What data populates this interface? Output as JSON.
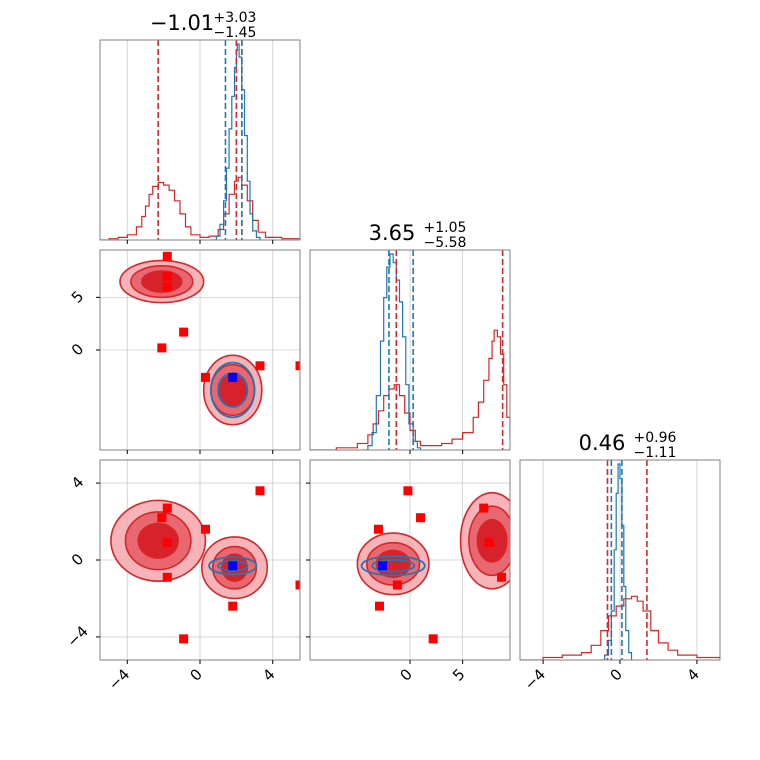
{
  "chart_data": {
    "type": "corner",
    "grid": true,
    "colors": {
      "red": "#d62728",
      "blue": "#1f77b4",
      "marker": "#ff0000",
      "truth": "#0000ff",
      "grid": "#cccccc"
    },
    "axes": {
      "x": {
        "limits": [
          -5.5,
          5.5
        ],
        "ticks": [
          -4,
          0,
          4
        ],
        "tick_labels": [
          "−4",
          "0",
          "4"
        ]
      },
      "y": {
        "limits": [
          -9.5,
          9.5
        ],
        "ticks": [
          0,
          5
        ],
        "tick_labels": [
          "0",
          "5"
        ]
      },
      "z": {
        "limits": [
          -5.2,
          5.2
        ],
        "ticks": [
          -4,
          0,
          4
        ],
        "tick_labels": [
          "−4",
          "0",
          "4"
        ]
      }
    },
    "titles": [
      {
        "param": "x",
        "main": "−1.01",
        "plus": "+3.03",
        "minus": "−1.45"
      },
      {
        "param": "y",
        "main": "3.65",
        "plus": "+1.05",
        "minus": "−5.58"
      },
      {
        "param": "z",
        "main": "0.46",
        "plus": "+0.96",
        "minus": "−1.11"
      }
    ],
    "quantile_lines": {
      "x": {
        "red": [
          -2.3,
          2.0,
          2.3
        ],
        "blue": [
          1.4,
          2.3
        ]
      },
      "y": {
        "red": [
          -1.3,
          8.8
        ],
        "blue": [
          -2.0,
          0.3
        ]
      },
      "z": {
        "red": [
          -0.65,
          1.4
        ],
        "blue": [
          -0.45,
          0.1
        ]
      }
    },
    "marginals": {
      "x": {
        "red": [
          [
            -5.5,
            0
          ],
          [
            -5,
            0.01
          ],
          [
            -4.5,
            0.02
          ],
          [
            -4,
            0.04
          ],
          [
            -3.5,
            0.1
          ],
          [
            -3.2,
            0.18
          ],
          [
            -3,
            0.26
          ],
          [
            -2.8,
            0.35
          ],
          [
            -2.6,
            0.41
          ],
          [
            -2.3,
            0.44
          ],
          [
            -2,
            0.42
          ],
          [
            -1.7,
            0.38
          ],
          [
            -1.4,
            0.3
          ],
          [
            -1.1,
            0.2
          ],
          [
            -0.8,
            0.1
          ],
          [
            -0.5,
            0.04
          ],
          [
            0,
            0.02
          ],
          [
            0.5,
            0.03
          ],
          [
            1,
            0.08
          ],
          [
            1.3,
            0.2
          ],
          [
            1.6,
            0.35
          ],
          [
            1.9,
            0.45
          ],
          [
            2.1,
            0.48
          ],
          [
            2.3,
            0.42
          ],
          [
            2.6,
            0.3
          ],
          [
            2.9,
            0.15
          ],
          [
            3.2,
            0.06
          ],
          [
            3.6,
            0.02
          ],
          [
            4.5,
            0.01
          ],
          [
            5.5,
            0
          ]
        ],
        "blue": [
          [
            0.6,
            0
          ],
          [
            0.9,
            0.03
          ],
          [
            1.1,
            0.12
          ],
          [
            1.3,
            0.3
          ],
          [
            1.45,
            0.55
          ],
          [
            1.6,
            0.85
          ],
          [
            1.75,
            1.1
          ],
          [
            1.9,
            1.32
          ],
          [
            2.0,
            1.45
          ],
          [
            2.05,
            1.5
          ],
          [
            2.15,
            1.4
          ],
          [
            2.3,
            1.15
          ],
          [
            2.45,
            0.8
          ],
          [
            2.6,
            0.45
          ],
          [
            2.75,
            0.2
          ],
          [
            2.9,
            0.07
          ],
          [
            3.1,
            0.02
          ],
          [
            3.3,
            0
          ]
        ]
      },
      "y": {
        "red": [
          [
            -9.5,
            0
          ],
          [
            -7,
            0.01
          ],
          [
            -5,
            0.03
          ],
          [
            -4,
            0.07
          ],
          [
            -3.5,
            0.12
          ],
          [
            -3,
            0.18
          ],
          [
            -2.5,
            0.25
          ],
          [
            -2,
            0.28
          ],
          [
            -1.5,
            0.3
          ],
          [
            -1,
            0.25
          ],
          [
            -0.5,
            0.17
          ],
          [
            0,
            0.09
          ],
          [
            0.5,
            0.04
          ],
          [
            1,
            0.02
          ],
          [
            2,
            0.02
          ],
          [
            3,
            0.03
          ],
          [
            4,
            0.05
          ],
          [
            5,
            0.08
          ],
          [
            6,
            0.15
          ],
          [
            6.5,
            0.22
          ],
          [
            7,
            0.32
          ],
          [
            7.5,
            0.42
          ],
          [
            7.8,
            0.5
          ],
          [
            8,
            0.55
          ],
          [
            8.3,
            0.52
          ],
          [
            8.6,
            0.44
          ],
          [
            8.9,
            0.3
          ],
          [
            9.2,
            0.15
          ],
          [
            9.5,
            0.05
          ]
        ],
        "blue": [
          [
            -4.5,
            0
          ],
          [
            -4,
            0.02
          ],
          [
            -3.6,
            0.08
          ],
          [
            -3.2,
            0.25
          ],
          [
            -2.8,
            0.5
          ],
          [
            -2.5,
            0.7
          ],
          [
            -2.2,
            0.84
          ],
          [
            -1.9,
            0.9
          ],
          [
            -1.6,
            0.86
          ],
          [
            -1.3,
            0.78
          ],
          [
            -1,
            0.68
          ],
          [
            -0.7,
            0.52
          ],
          [
            -0.4,
            0.3
          ],
          [
            -0.1,
            0.12
          ],
          [
            0.3,
            0.04
          ],
          [
            0.7,
            0.01
          ],
          [
            1,
            0
          ]
        ]
      },
      "z": {
        "red": [
          [
            -5.2,
            0
          ],
          [
            -4,
            0.01
          ],
          [
            -3,
            0.02
          ],
          [
            -2,
            0.03
          ],
          [
            -1.5,
            0.06
          ],
          [
            -1,
            0.12
          ],
          [
            -0.6,
            0.18
          ],
          [
            -0.2,
            0.22
          ],
          [
            0.2,
            0.25
          ],
          [
            0.6,
            0.26
          ],
          [
            0.9,
            0.24
          ],
          [
            1.2,
            0.2
          ],
          [
            1.6,
            0.12
          ],
          [
            2,
            0.07
          ],
          [
            2.5,
            0.04
          ],
          [
            3,
            0.02
          ],
          [
            4,
            0.01
          ],
          [
            5.2,
            0
          ]
        ],
        "blue": [
          [
            -1,
            0
          ],
          [
            -0.8,
            0.02
          ],
          [
            -0.6,
            0.08
          ],
          [
            -0.45,
            0.2
          ],
          [
            -0.3,
            0.45
          ],
          [
            -0.2,
            0.68
          ],
          [
            -0.1,
            0.8
          ],
          [
            0.0,
            0.74
          ],
          [
            0.1,
            0.55
          ],
          [
            0.2,
            0.3
          ],
          [
            0.3,
            0.12
          ],
          [
            0.45,
            0.03
          ],
          [
            0.6,
            0
          ]
        ]
      }
    },
    "blobs": {
      "xy": [
        {
          "cx": -2.1,
          "cy": 6.5,
          "rx": [
            2.3,
            1.7,
            1.1
          ],
          "ry": [
            2.0,
            1.5,
            1.0
          ],
          "color": "red"
        },
        {
          "cx": 1.8,
          "cy": -3.8,
          "rx": [
            1.6,
            1.2,
            0.8
          ],
          "ry": [
            3.3,
            2.4,
            1.6
          ],
          "color": "red"
        },
        {
          "cx": 1.8,
          "cy": -3.8,
          "rx": [
            1.2,
            0.8
          ],
          "ry": [
            2.6,
            1.6
          ],
          "color": "blue"
        }
      ],
      "xz": [
        {
          "cx": -2.3,
          "cy": 1.0,
          "rx": [
            2.6,
            1.8,
            1.1
          ],
          "ry": [
            2.1,
            1.5,
            0.9
          ],
          "color": "red"
        },
        {
          "cx": 1.9,
          "cy": -0.4,
          "rx": [
            1.8,
            1.2,
            0.7
          ],
          "ry": [
            1.6,
            1.1,
            0.7
          ],
          "color": "red"
        },
        {
          "cx": 1.8,
          "cy": -0.3,
          "rx": [
            1.3,
            0.8
          ],
          "ry": [
            0.45,
            0.25
          ],
          "color": "blue"
        }
      ],
      "yz": [
        {
          "cx": -1.6,
          "cy": -0.2,
          "rx": [
            3.4,
            2.5,
            1.6
          ],
          "ry": [
            1.6,
            1.1,
            0.7
          ],
          "color": "red"
        },
        {
          "cx": 7.8,
          "cy": 1.0,
          "rx": [
            3.0,
            2.2,
            1.4
          ],
          "ry": [
            2.5,
            1.8,
            1.1
          ],
          "color": "red"
        },
        {
          "cx": -1.6,
          "cy": -0.3,
          "rx": [
            3.0,
            2.0
          ],
          "ry": [
            0.5,
            0.3
          ],
          "color": "blue"
        }
      ]
    },
    "markers": {
      "xy": [
        [
          -1.8,
          8.9
        ],
        [
          -1.8,
          7.0
        ],
        [
          -1.8,
          6.0
        ],
        [
          -0.9,
          1.7
        ],
        [
          -2.1,
          0.2
        ],
        [
          0.3,
          -2.6
        ],
        [
          3.3,
          -1.5
        ],
        [
          5.5,
          -1.5
        ]
      ],
      "xz": [
        [
          -1.8,
          2.7
        ],
        [
          -2.1,
          2.2
        ],
        [
          -1.8,
          0.9
        ],
        [
          0.3,
          1.6
        ],
        [
          3.3,
          3.6
        ],
        [
          -1.8,
          -0.9
        ],
        [
          1.8,
          -2.4
        ],
        [
          5.5,
          -1.3
        ],
        [
          -0.9,
          -4.1
        ]
      ],
      "yz": [
        [
          -3.0,
          1.6
        ],
        [
          -0.2,
          3.6
        ],
        [
          1.0,
          2.2
        ],
        [
          7.0,
          2.7
        ],
        [
          7.5,
          0.9
        ],
        [
          8.7,
          -0.9
        ],
        [
          -1.2,
          -1.3
        ],
        [
          -2.9,
          -2.4
        ],
        [
          2.2,
          -4.1
        ]
      ]
    },
    "truth": {
      "xy": [
        1.8,
        -2.6
      ],
      "xz": [
        1.8,
        -0.3
      ],
      "yz": [
        -2.6,
        -0.3
      ]
    }
  }
}
